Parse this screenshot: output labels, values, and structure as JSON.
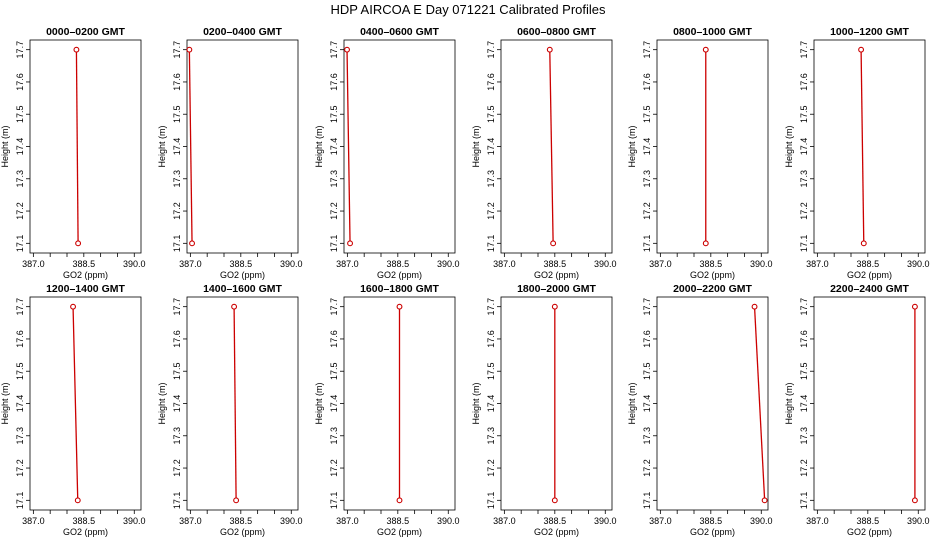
{
  "figure": {
    "title": "HDP  AIRCOA E  Day 071221  Calibrated Profiles"
  },
  "chart_data": [
    {
      "type": "line",
      "title": "0000–0200 GMT",
      "xlabel": "GO2 (ppm)",
      "ylabel": "Height (m)",
      "xlim": [
        386.9,
        390.2
      ],
      "ylim": [
        17.07,
        17.73
      ],
      "xticks": [
        "387.0",
        "388.5",
        "390.0"
      ],
      "xminor": [
        387.0,
        387.5,
        388.0,
        388.5,
        389.0,
        389.5,
        390.0
      ],
      "yticks": [
        "17.1",
        "17.2",
        "17.3",
        "17.4",
        "17.5",
        "17.6",
        "17.7"
      ],
      "series": [
        {
          "x": [
            388.33,
            388.28
          ],
          "y": [
            17.1,
            17.7
          ]
        }
      ]
    },
    {
      "type": "line",
      "title": "0200–0400 GMT",
      "xlabel": "GO2 (ppm)",
      "ylabel": "Height (m)",
      "xlim": [
        386.9,
        390.2
      ],
      "ylim": [
        17.07,
        17.73
      ],
      "xticks": [
        "387.0",
        "388.5",
        "390.0"
      ],
      "xminor": [
        387.0,
        387.5,
        388.0,
        388.5,
        389.0,
        389.5,
        390.0
      ],
      "yticks": [
        "17.1",
        "17.2",
        "17.3",
        "17.4",
        "17.5",
        "17.6",
        "17.7"
      ],
      "series": [
        {
          "x": [
            387.05,
            386.97
          ],
          "y": [
            17.1,
            17.7
          ]
        }
      ]
    },
    {
      "type": "line",
      "title": "0400–0600 GMT",
      "xlabel": "GO2 (ppm)",
      "ylabel": "Height (m)",
      "xlim": [
        386.9,
        390.2
      ],
      "ylim": [
        17.07,
        17.73
      ],
      "xticks": [
        "387.0",
        "388.5",
        "390.0"
      ],
      "xminor": [
        387.0,
        387.5,
        388.0,
        388.5,
        389.0,
        389.5,
        390.0
      ],
      "yticks": [
        "17.1",
        "17.2",
        "17.3",
        "17.4",
        "17.5",
        "17.6",
        "17.7"
      ],
      "series": [
        {
          "x": [
            387.08,
            386.99
          ],
          "y": [
            17.1,
            17.7
          ]
        }
      ]
    },
    {
      "type": "line",
      "title": "0600–0800 GMT",
      "xlabel": "GO2 (ppm)",
      "ylabel": "Height (m)",
      "xlim": [
        386.9,
        390.2
      ],
      "ylim": [
        17.07,
        17.73
      ],
      "xticks": [
        "387.0",
        "388.5",
        "390.0"
      ],
      "xminor": [
        387.0,
        387.5,
        388.0,
        388.5,
        389.0,
        389.5,
        390.0
      ],
      "yticks": [
        "17.1",
        "17.2",
        "17.3",
        "17.4",
        "17.5",
        "17.6",
        "17.7"
      ],
      "series": [
        {
          "x": [
            388.45,
            388.35
          ],
          "y": [
            17.1,
            17.7
          ]
        }
      ]
    },
    {
      "type": "line",
      "title": "0800–1000 GMT",
      "xlabel": "GO2 (ppm)",
      "ylabel": "Height (m)",
      "xlim": [
        386.9,
        390.2
      ],
      "ylim": [
        17.07,
        17.73
      ],
      "xticks": [
        "387.0",
        "388.5",
        "390.0"
      ],
      "xminor": [
        387.0,
        387.5,
        388.0,
        388.5,
        389.0,
        389.5,
        390.0
      ],
      "yticks": [
        "17.1",
        "17.2",
        "17.3",
        "17.4",
        "17.5",
        "17.6",
        "17.7"
      ],
      "series": [
        {
          "x": [
            388.35,
            388.35
          ],
          "y": [
            17.1,
            17.7
          ]
        }
      ]
    },
    {
      "type": "line",
      "title": "1000–1200 GMT",
      "xlabel": "GO2 (ppm)",
      "ylabel": "Height (m)",
      "xlim": [
        386.9,
        390.2
      ],
      "ylim": [
        17.07,
        17.73
      ],
      "xticks": [
        "387.0",
        "388.5",
        "390.0"
      ],
      "xminor": [
        387.0,
        387.5,
        388.0,
        388.5,
        389.0,
        389.5,
        390.0
      ],
      "yticks": [
        "17.1",
        "17.2",
        "17.3",
        "17.4",
        "17.5",
        "17.6",
        "17.7"
      ],
      "series": [
        {
          "x": [
            388.38,
            388.3
          ],
          "y": [
            17.1,
            17.7
          ]
        }
      ]
    },
    {
      "type": "line",
      "title": "1200–1400 GMT",
      "xlabel": "GO2 (ppm)",
      "ylabel": "Height (m)",
      "xlim": [
        386.9,
        390.2
      ],
      "ylim": [
        17.07,
        17.73
      ],
      "xticks": [
        "387.0",
        "388.5",
        "390.0"
      ],
      "xminor": [
        387.0,
        387.5,
        388.0,
        388.5,
        389.0,
        389.5,
        390.0
      ],
      "yticks": [
        "17.1",
        "17.2",
        "17.3",
        "17.4",
        "17.5",
        "17.6",
        "17.7"
      ],
      "series": [
        {
          "x": [
            388.32,
            388.18
          ],
          "y": [
            17.1,
            17.7
          ]
        }
      ]
    },
    {
      "type": "line",
      "title": "1400–1600 GMT",
      "xlabel": "GO2 (ppm)",
      "ylabel": "Height (m)",
      "xlim": [
        386.9,
        390.2
      ],
      "ylim": [
        17.07,
        17.73
      ],
      "xticks": [
        "387.0",
        "388.5",
        "390.0"
      ],
      "xminor": [
        387.0,
        387.5,
        388.0,
        388.5,
        389.0,
        389.5,
        390.0
      ],
      "yticks": [
        "17.1",
        "17.2",
        "17.3",
        "17.4",
        "17.5",
        "17.6",
        "17.7"
      ],
      "series": [
        {
          "x": [
            388.36,
            388.3
          ],
          "y": [
            17.1,
            17.7
          ]
        }
      ]
    },
    {
      "type": "line",
      "title": "1600–1800 GMT",
      "xlabel": "GO2 (ppm)",
      "ylabel": "Height (m)",
      "xlim": [
        386.9,
        390.2
      ],
      "ylim": [
        17.07,
        17.73
      ],
      "xticks": [
        "387.0",
        "388.5",
        "390.0"
      ],
      "xminor": [
        387.0,
        387.5,
        388.0,
        388.5,
        389.0,
        389.5,
        390.0
      ],
      "yticks": [
        "17.1",
        "17.2",
        "17.3",
        "17.4",
        "17.5",
        "17.6",
        "17.7"
      ],
      "series": [
        {
          "x": [
            388.55,
            388.55
          ],
          "y": [
            17.1,
            17.7
          ]
        }
      ]
    },
    {
      "type": "line",
      "title": "1800–2000 GMT",
      "xlabel": "GO2 (ppm)",
      "ylabel": "Height (m)",
      "xlim": [
        386.9,
        390.2
      ],
      "ylim": [
        17.07,
        17.73
      ],
      "xticks": [
        "387.0",
        "388.5",
        "390.0"
      ],
      "xminor": [
        387.0,
        387.5,
        388.0,
        388.5,
        389.0,
        389.5,
        390.0
      ],
      "yticks": [
        "17.1",
        "17.2",
        "17.3",
        "17.4",
        "17.5",
        "17.6",
        "17.7"
      ],
      "series": [
        {
          "x": [
            388.5,
            388.5
          ],
          "y": [
            17.1,
            17.7
          ]
        }
      ]
    },
    {
      "type": "line",
      "title": "2000–2200 GMT",
      "xlabel": "GO2 (ppm)",
      "ylabel": "Height (m)",
      "xlim": [
        386.9,
        390.2
      ],
      "ylim": [
        17.07,
        17.73
      ],
      "xticks": [
        "387.0",
        "388.5",
        "390.0"
      ],
      "xminor": [
        387.0,
        387.5,
        388.0,
        388.5,
        389.0,
        389.5,
        390.0
      ],
      "yticks": [
        "17.1",
        "17.2",
        "17.3",
        "17.4",
        "17.5",
        "17.6",
        "17.7"
      ],
      "series": [
        {
          "x": [
            390.1,
            389.8
          ],
          "y": [
            17.1,
            17.7
          ]
        }
      ]
    },
    {
      "type": "line",
      "title": "2200–2400 GMT",
      "xlabel": "GO2 (ppm)",
      "ylabel": "Height (m)",
      "xlim": [
        386.9,
        390.2
      ],
      "ylim": [
        17.07,
        17.73
      ],
      "xticks": [
        "387.0",
        "388.5",
        "390.0"
      ],
      "xminor": [
        387.0,
        387.5,
        388.0,
        388.5,
        389.0,
        389.5,
        390.0
      ],
      "yticks": [
        "17.1",
        "17.2",
        "17.3",
        "17.4",
        "17.5",
        "17.6",
        "17.7"
      ],
      "series": [
        {
          "x": [
            389.9,
            389.9
          ],
          "y": [
            17.1,
            17.7
          ]
        }
      ]
    }
  ],
  "colors": {
    "series": "#cc0000",
    "axis": "#000000"
  }
}
